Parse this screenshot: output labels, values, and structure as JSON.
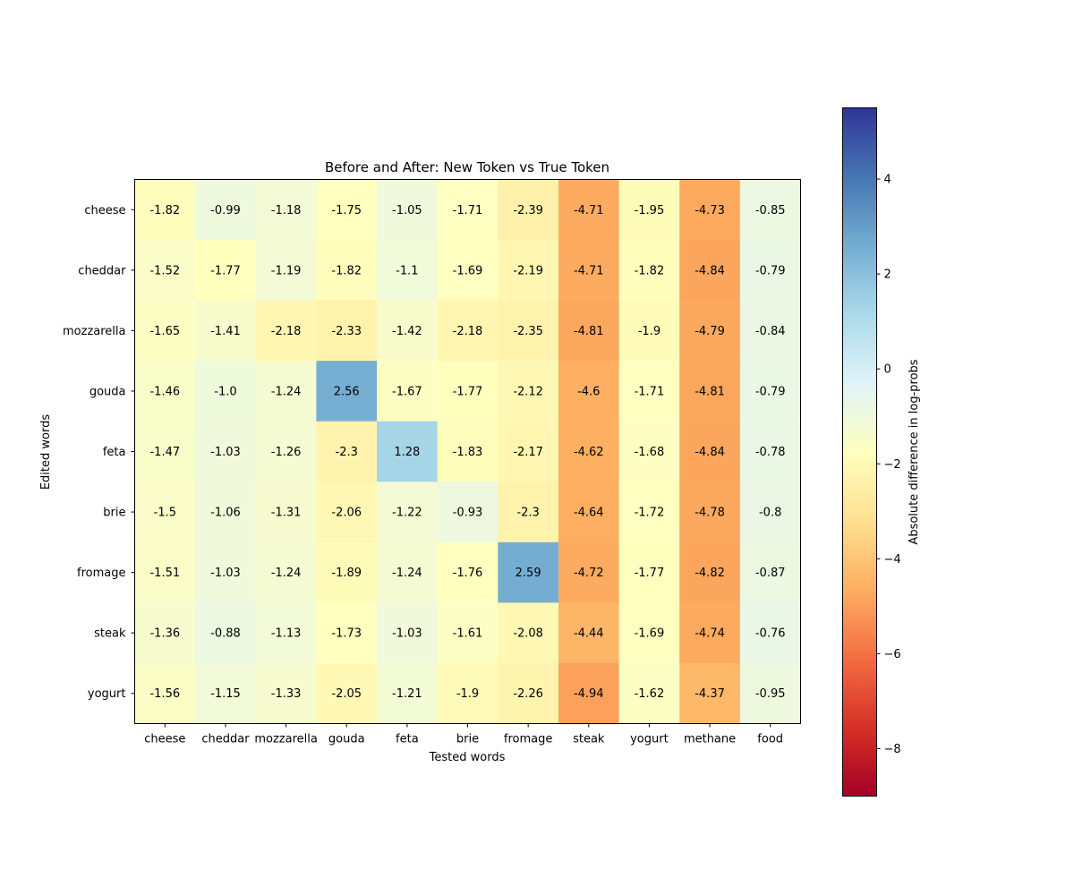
{
  "chart_data": {
    "type": "heatmap",
    "title": "Before and After: New Token vs True Token",
    "xlabel": "Tested words",
    "ylabel": "Edited words",
    "x_categories": [
      "cheese",
      "cheddar",
      "mozzarella",
      "gouda",
      "feta",
      "brie",
      "fromage",
      "steak",
      "yogurt",
      "methane",
      "food"
    ],
    "y_categories": [
      "cheese",
      "cheddar",
      "mozzarella",
      "gouda",
      "feta",
      "brie",
      "fromage",
      "steak",
      "yogurt"
    ],
    "values": [
      [
        -1.82,
        -0.99,
        -1.18,
        -1.75,
        -1.05,
        -1.71,
        -2.39,
        -4.71,
        -1.95,
        -4.73,
        -0.85
      ],
      [
        -1.52,
        -1.77,
        -1.19,
        -1.82,
        -1.1,
        -1.69,
        -2.19,
        -4.71,
        -1.82,
        -4.84,
        -0.79
      ],
      [
        -1.65,
        -1.41,
        -2.18,
        -2.33,
        -1.42,
        -2.18,
        -2.35,
        -4.81,
        -1.9,
        -4.79,
        -0.84
      ],
      [
        -1.46,
        -1.0,
        -1.24,
        2.56,
        -1.67,
        -1.77,
        -2.12,
        -4.6,
        -1.71,
        -4.81,
        -0.79
      ],
      [
        -1.47,
        -1.03,
        -1.26,
        -2.3,
        1.28,
        -1.83,
        -2.17,
        -4.62,
        -1.68,
        -4.84,
        -0.78
      ],
      [
        -1.5,
        -1.06,
        -1.31,
        -2.06,
        -1.22,
        -0.93,
        -2.3,
        -4.64,
        -1.72,
        -4.78,
        -0.8
      ],
      [
        -1.51,
        -1.03,
        -1.24,
        -1.89,
        -1.24,
        -1.76,
        2.59,
        -4.72,
        -1.77,
        -4.82,
        -0.87
      ],
      [
        -1.36,
        -0.88,
        -1.13,
        -1.73,
        -1.03,
        -1.61,
        -2.08,
        -4.44,
        -1.69,
        -4.74,
        -0.76
      ],
      [
        -1.56,
        -1.15,
        -1.33,
        -2.05,
        -1.21,
        -1.9,
        -2.26,
        -4.94,
        -1.62,
        -4.37,
        -0.95
      ]
    ],
    "cell_labels": [
      [
        "-1.82",
        "-0.99",
        "-1.18",
        "-1.75",
        "-1.05",
        "-1.71",
        "-2.39",
        "-4.71",
        "-1.95",
        "-4.73",
        "-0.85"
      ],
      [
        "-1.52",
        "-1.77",
        "-1.19",
        "-1.82",
        "-1.1",
        "-1.69",
        "-2.19",
        "-4.71",
        "-1.82",
        "-4.84",
        "-0.79"
      ],
      [
        "-1.65",
        "-1.41",
        "-2.18",
        "-2.33",
        "-1.42",
        "-2.18",
        "-2.35",
        "-4.81",
        "-1.9",
        "-4.79",
        "-0.84"
      ],
      [
        "-1.46",
        "-1.0",
        "-1.24",
        "2.56",
        "-1.67",
        "-1.77",
        "-2.12",
        "-4.6",
        "-1.71",
        "-4.81",
        "-0.79"
      ],
      [
        "-1.47",
        "-1.03",
        "-1.26",
        "-2.3",
        "1.28",
        "-1.83",
        "-2.17",
        "-4.62",
        "-1.68",
        "-4.84",
        "-0.78"
      ],
      [
        "-1.5",
        "-1.06",
        "-1.31",
        "-2.06",
        "-1.22",
        "-0.93",
        "-2.3",
        "-4.64",
        "-1.72",
        "-4.78",
        "-0.8"
      ],
      [
        "-1.51",
        "-1.03",
        "-1.24",
        "-1.89",
        "-1.24",
        "-1.76",
        "2.59",
        "-4.72",
        "-1.77",
        "-4.82",
        "-0.87"
      ],
      [
        "-1.36",
        "-0.88",
        "-1.13",
        "-1.73",
        "-1.03",
        "-1.61",
        "-2.08",
        "-4.44",
        "-1.69",
        "-4.74",
        "-0.76"
      ],
      [
        "-1.56",
        "-1.15",
        "-1.33",
        "-2.05",
        "-1.21",
        "-1.9",
        "-2.26",
        "-4.94",
        "-1.62",
        "-4.37",
        "-0.95"
      ]
    ],
    "colormap": "RdYlBu",
    "colorbar": {
      "label": "Absolute difference in log-probs",
      "vmin": -9,
      "vmax": 5.5,
      "ticks": [
        4,
        2,
        0,
        -2,
        -4,
        -6,
        -8
      ],
      "tick_labels": [
        "4",
        "2",
        "0",
        "−2",
        "−4",
        "−6",
        "−8"
      ]
    },
    "grid": false
  }
}
